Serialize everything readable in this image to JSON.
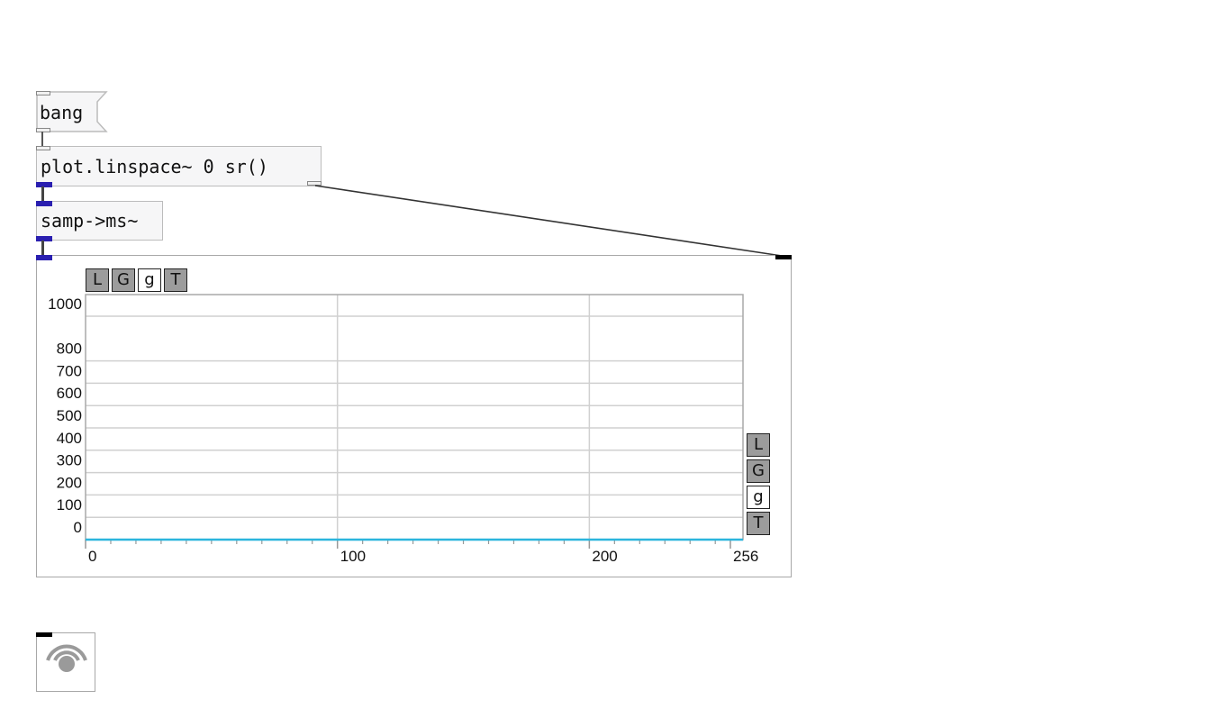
{
  "objects": {
    "bang": "bang",
    "linspace": "plot.linspace~ 0 sr()",
    "samp2ms": "samp->ms~"
  },
  "plot_controls": {
    "top": [
      "L",
      "G",
      "g",
      "T"
    ],
    "right": [
      "L",
      "G",
      "g",
      "T"
    ]
  },
  "colors": {
    "signal_cord": "#2a1fb0",
    "plot_line": "#2bb5dd",
    "grid": "#d0d0d0",
    "button_gray": "#9c9c9c"
  },
  "chart_data": {
    "type": "line",
    "x_ticks": [
      "0",
      "100",
      "200",
      "256"
    ],
    "y_ticks": [
      "0",
      "100",
      "200",
      "300",
      "400",
      "500",
      "600",
      "700",
      "800",
      "1000"
    ],
    "x_range": [
      0,
      256
    ],
    "y_range": [
      0,
      1000
    ],
    "series": [
      {
        "values": [
          0,
          0
        ]
      }
    ],
    "grid": true
  },
  "dsp_icon": "speaker-dsp-icon"
}
